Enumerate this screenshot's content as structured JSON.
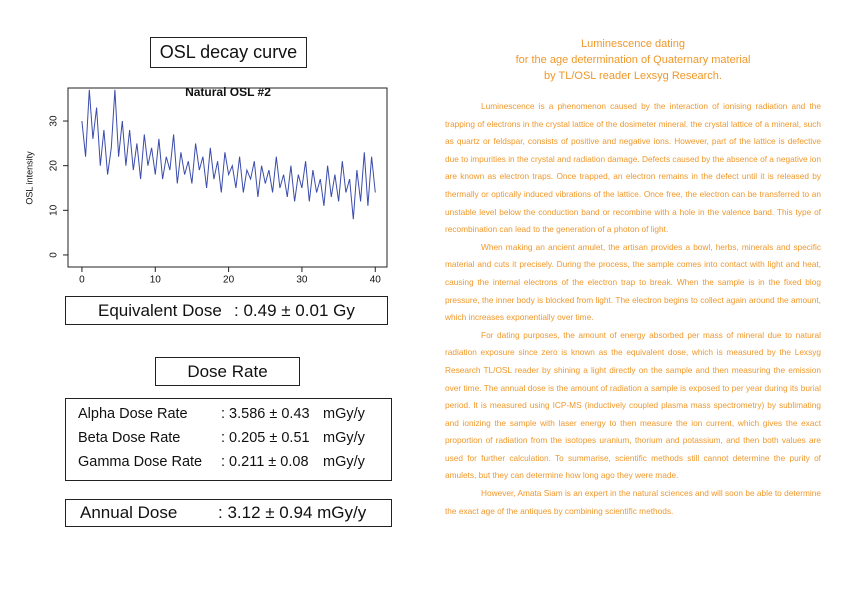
{
  "left": {
    "heading": "OSL decay curve",
    "chart_data": {
      "type": "line",
      "title": "Natural OSL #2",
      "y_label": "OSL intensity",
      "color": "#3b4cab",
      "x": [
        0,
        0.5,
        1,
        1.5,
        2,
        2.5,
        3,
        3.5,
        4,
        4.5,
        5,
        5.5,
        6,
        6.5,
        7,
        7.5,
        8,
        8.5,
        9,
        9.5,
        10,
        10.5,
        11,
        11.5,
        12,
        12.5,
        13,
        13.5,
        14,
        14.5,
        15,
        15.5,
        16,
        16.5,
        17,
        17.5,
        18,
        18.5,
        19,
        19.5,
        20,
        20.5,
        21,
        21.5,
        22,
        22.5,
        23,
        23.5,
        24,
        24.5,
        25,
        25.5,
        26,
        26.5,
        27,
        27.5,
        28,
        28.5,
        29,
        29.5,
        30,
        30.5,
        31,
        31.5,
        32,
        32.5,
        33,
        33.5,
        34,
        34.5,
        35,
        35.5,
        36,
        36.5,
        37,
        37.5,
        38,
        38.5,
        39,
        39.5,
        40
      ],
      "values": [
        30,
        22,
        37,
        26,
        33,
        20,
        28,
        18,
        24,
        37,
        22,
        30,
        20,
        28,
        19,
        25,
        17,
        27,
        20,
        24,
        18,
        26,
        17,
        22,
        19,
        27,
        16,
        23,
        18,
        21,
        16,
        25,
        19,
        22,
        15,
        24,
        17,
        21,
        14,
        23,
        18,
        20,
        15,
        22,
        14,
        19,
        17,
        21,
        13,
        20,
        16,
        19,
        14,
        22,
        15,
        18,
        13,
        20,
        12,
        18,
        15,
        21,
        12,
        19,
        14,
        17,
        11,
        20,
        13,
        18,
        12,
        21,
        14,
        17,
        8,
        19,
        12,
        23,
        11,
        22,
        14
      ],
      "xlim": [
        -1.9,
        41.6
      ],
      "ylim": [
        -2.7,
        37.4
      ],
      "xticks": [
        0,
        10,
        20,
        30,
        40
      ],
      "yticks": [
        0,
        10,
        20,
        30
      ]
    },
    "equivalent_dose": {
      "label": "Equivalent Dose",
      "value": ": 0.49 ± 0.01 Gy"
    },
    "dose_rate": {
      "heading": "Dose Rate",
      "rows": [
        {
          "label": "Alpha Dose Rate",
          "value": ": 3.586 ± 0.43",
          "unit": "mGy/y"
        },
        {
          "label": "Beta Dose Rate",
          "value": ": 0.205 ± 0.51",
          "unit": "mGy/y"
        },
        {
          "label": "Gamma Dose Rate",
          "value": ": 0.211 ± 0.08",
          "unit": "mGy/y"
        }
      ]
    },
    "annual_dose": {
      "label": "Annual Dose",
      "value": ": 3.12 ± 0.94 mGy/y"
    }
  },
  "right": {
    "title": [
      "Luminescence dating",
      "for the age determination of Quaternary material",
      "by TL/OSL reader Lexsyg Research."
    ],
    "paragraphs": [
      "Luminescence is a phenomenon caused by the interaction of ionising radiation and the trapping of electrons in the crystal lattice of the dosimeter mineral. the crystal lattice of a mineral, such as quartz or feldspar, consists of positive and negative ions. However, part of the lattice is defective due to impurities in the crystal and radiation damage. Defects caused by the absence of a negative ion are known as electron traps. Once trapped, an electron remains in the defect until it is released by thermally or optically induced vibrations of the lattice. Once free, the electron can be transferred to an unstable level below the conduction band or recombine with a hole in the valence band. This type of recombination can lead to the generation of a photon of light.",
      "When making an ancient amulet, the artisan provides a bowl, herbs, minerals and specific material and cuts it precisely. During the process, the sample comes into contact with light and heat, causing the internal electrons of the electron trap to break. When the sample is in the fixed blog pressure, the inner body is blocked from light. The electron begins to collect again around the amount, which increases exponentially over time.",
      "For dating purposes, the amount of energy absorbed per mass of mineral due to natural radiation exposure since zero is known as the equivalent dose, which is measured by the Lexsyg Research TL/OSL reader by shining a light directly on the sample and then measuring the emission over time. The annual dose is the amount of radiation a sample is exposed to per year during its burial period. It is measured using ICP-MS (inductively coupled plasma mass spectrometry) by sublimating and ionizing the sample with laser energy to then measure the ion current, which gives the exact proportion of radiation from the isotopes uranium, thorium and potassium, and then both values are used for further calculation. To summarise, scientific methods still cannot determine the purity of amulets, but they can determine how long ago they were made.",
      "However, Amata Siam is an expert in the natural sciences and will soon be able to determine the exact age of the antiques by combining scientific methods."
    ]
  }
}
